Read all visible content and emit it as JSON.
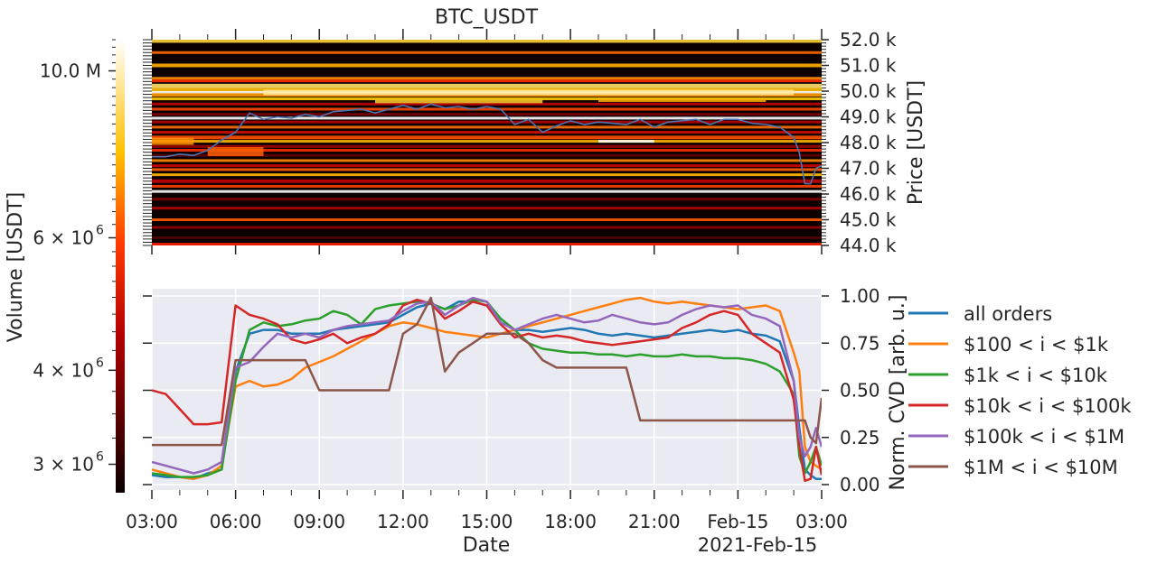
{
  "chart_data": [
    {
      "type": "heatmap",
      "title": "BTC_USDT",
      "ylabel": "Price [USDT]",
      "ylim": [
        44000,
        52000
      ],
      "yticks": [
        "44.0 k",
        "45.0 k",
        "46.0 k",
        "47.0 k",
        "48.0 k",
        "49.0 k",
        "50.0 k",
        "51.0 k",
        "52.0 k"
      ],
      "colorbar": {
        "label": "Volume [USDT]",
        "scale": "log",
        "colormap": "hot",
        "ticks": [
          {
            "value": 10000000,
            "base": "10.0 M",
            "exp": ""
          },
          {
            "value": 6000000,
            "base": "6 × 10",
            "exp": "6"
          },
          {
            "value": 4000000,
            "base": "4 × 10",
            "exp": "6"
          },
          {
            "value": 3000000,
            "base": "3 × 10",
            "exp": "6"
          }
        ]
      },
      "price_line": {
        "color": "#4c72b0",
        "x_hours": [
          0,
          0.5,
          1,
          1.5,
          2,
          2.5,
          3,
          3.5,
          4,
          4.5,
          5,
          5.5,
          6,
          6.5,
          7,
          7.5,
          8,
          8.5,
          9,
          9.5,
          10,
          10.5,
          11,
          11.5,
          12,
          12.5,
          13,
          13.5,
          14,
          14.5,
          15,
          15.5,
          16,
          16.5,
          17,
          17.5,
          18,
          18.5,
          19,
          19.5,
          20,
          20.5,
          21,
          21.5,
          22,
          22.5,
          23,
          23.2,
          23.4,
          23.6,
          23.8,
          24
        ],
        "y": [
          47450,
          47450,
          47550,
          47500,
          47700,
          48100,
          48400,
          49150,
          48900,
          49000,
          48950,
          49100,
          49000,
          49200,
          49250,
          49300,
          49150,
          49300,
          49450,
          49300,
          49500,
          49350,
          49400,
          49300,
          49400,
          49300,
          48700,
          48900,
          48400,
          48650,
          48850,
          48700,
          48800,
          48750,
          48700,
          48900,
          48600,
          48800,
          48850,
          48900,
          48700,
          48900,
          48900,
          48750,
          48700,
          48600,
          48200,
          47600,
          46400,
          46400,
          47000,
          47100
        ]
      }
    },
    {
      "type": "line",
      "xlabel": "Date",
      "ylabel": "Norm. CVD [arb. u.]",
      "ylim": [
        0,
        1
      ],
      "yticks": [
        "0.00",
        "0.25",
        "0.50",
        "0.75",
        "1.00"
      ],
      "xticks": [
        "03:00",
        "06:00",
        "09:00",
        "12:00",
        "15:00",
        "18:00",
        "21:00",
        "Feb-15",
        "03:00"
      ],
      "x_offset_label": "2021-Feb-15",
      "legend_placement": "right",
      "x_hours": [
        0,
        0.5,
        1,
        1.5,
        2,
        2.5,
        3,
        3.5,
        4,
        4.5,
        5,
        5.5,
        6,
        6.5,
        7,
        7.5,
        8,
        8.5,
        9,
        9.5,
        10,
        10.5,
        11,
        11.5,
        12,
        12.5,
        13,
        13.5,
        14,
        14.5,
        15,
        15.5,
        16,
        16.5,
        17,
        17.5,
        18,
        18.5,
        19,
        19.5,
        20,
        20.5,
        21,
        21.5,
        22,
        22.5,
        23,
        23.2,
        23.4,
        23.6,
        23.8,
        24
      ],
      "series": [
        {
          "name": "all orders",
          "color": "#1f77b4",
          "values": [
            0.05,
            0.04,
            0.04,
            0.03,
            0.06,
            0.08,
            0.6,
            0.8,
            0.82,
            0.82,
            0.8,
            0.8,
            0.8,
            0.82,
            0.83,
            0.84,
            0.85,
            0.86,
            0.9,
            0.94,
            0.96,
            0.93,
            0.97,
            0.97,
            0.95,
            0.88,
            0.82,
            0.82,
            0.81,
            0.82,
            0.83,
            0.82,
            0.8,
            0.79,
            0.8,
            0.79,
            0.78,
            0.79,
            0.8,
            0.81,
            0.82,
            0.81,
            0.82,
            0.8,
            0.79,
            0.76,
            0.55,
            0.3,
            0.08,
            0.05,
            0.03,
            0.03
          ]
        },
        {
          "name": "$100 < i < $1k",
          "color": "#ff7f0e",
          "values": [
            0.08,
            0.06,
            0.04,
            0.03,
            0.05,
            0.1,
            0.52,
            0.55,
            0.52,
            0.53,
            0.56,
            0.62,
            0.65,
            0.68,
            0.72,
            0.76,
            0.8,
            0.84,
            0.86,
            0.85,
            0.83,
            0.81,
            0.8,
            0.79,
            0.78,
            0.8,
            0.82,
            0.84,
            0.86,
            0.88,
            0.9,
            0.92,
            0.94,
            0.96,
            0.98,
            0.99,
            0.97,
            0.96,
            0.97,
            0.96,
            0.95,
            0.94,
            0.93,
            0.94,
            0.95,
            0.92,
            0.7,
            0.6,
            0.2,
            0.12,
            0.1,
            0.08
          ]
        },
        {
          "name": "$1k < i < $10k",
          "color": "#2ca02c",
          "values": [
            0.06,
            0.05,
            0.04,
            0.04,
            0.05,
            0.08,
            0.55,
            0.82,
            0.86,
            0.84,
            0.85,
            0.87,
            0.88,
            0.92,
            0.9,
            0.85,
            0.93,
            0.95,
            0.96,
            0.97,
            0.96,
            0.93,
            0.95,
            0.98,
            0.97,
            0.88,
            0.82,
            0.75,
            0.72,
            0.71,
            0.7,
            0.7,
            0.69,
            0.69,
            0.68,
            0.69,
            0.68,
            0.68,
            0.69,
            0.68,
            0.68,
            0.67,
            0.67,
            0.66,
            0.64,
            0.6,
            0.48,
            0.15,
            0.06,
            0.12,
            0.2,
            0.1
          ]
        },
        {
          "name": "$10k < i < $100k",
          "color": "#d62728",
          "values": [
            0.5,
            0.48,
            0.4,
            0.32,
            0.32,
            0.33,
            0.95,
            0.9,
            0.88,
            0.85,
            0.77,
            0.75,
            0.77,
            0.8,
            0.75,
            0.78,
            0.8,
            0.85,
            0.95,
            0.98,
            0.96,
            0.88,
            0.92,
            0.97,
            0.95,
            0.85,
            0.78,
            0.8,
            0.78,
            0.79,
            0.78,
            0.76,
            0.75,
            0.74,
            0.75,
            0.76,
            0.77,
            0.78,
            0.83,
            0.86,
            0.9,
            0.92,
            0.9,
            0.8,
            0.75,
            0.7,
            0.45,
            0.2,
            0.02,
            0.03,
            0.2,
            0.05
          ]
        },
        {
          "name": "$100k < i < $1M",
          "color": "#9467bd",
          "values": [
            0.12,
            0.1,
            0.08,
            0.06,
            0.08,
            0.12,
            0.62,
            0.65,
            0.73,
            0.8,
            0.78,
            0.8,
            0.78,
            0.82,
            0.84,
            0.85,
            0.86,
            0.87,
            0.92,
            0.96,
            0.97,
            0.9,
            0.95,
            0.99,
            0.97,
            0.86,
            0.82,
            0.85,
            0.88,
            0.9,
            0.88,
            0.86,
            0.87,
            0.9,
            0.88,
            0.86,
            0.85,
            0.86,
            0.9,
            0.93,
            0.95,
            0.94,
            0.95,
            0.9,
            0.88,
            0.84,
            0.55,
            0.25,
            0.15,
            0.2,
            0.3,
            0.2
          ]
        },
        {
          "name": "$1M < i < $10M",
          "color": "#8c564b",
          "values": [
            0.21,
            0.21,
            0.21,
            0.21,
            0.21,
            0.21,
            0.66,
            0.66,
            0.66,
            0.66,
            0.66,
            0.66,
            0.5,
            0.5,
            0.5,
            0.5,
            0.5,
            0.5,
            0.8,
            0.85,
            0.99,
            0.6,
            0.7,
            0.75,
            0.8,
            0.8,
            0.8,
            0.75,
            0.66,
            0.62,
            0.62,
            0.62,
            0.62,
            0.62,
            0.62,
            0.34,
            0.34,
            0.34,
            0.34,
            0.34,
            0.34,
            0.34,
            0.34,
            0.34,
            0.34,
            0.34,
            0.34,
            0.34,
            0.34,
            0.25,
            0.22,
            0.46
          ]
        }
      ]
    }
  ]
}
